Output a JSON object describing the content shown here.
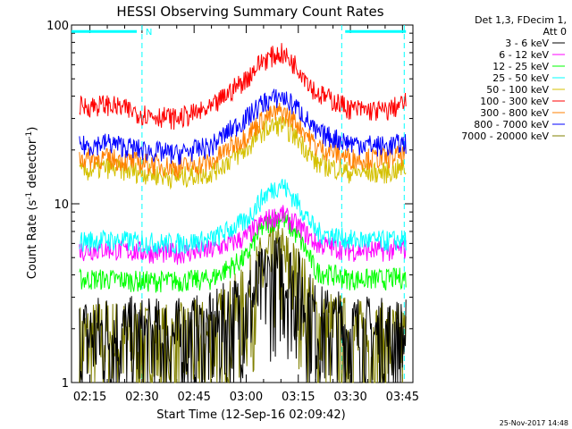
{
  "chart_data": {
    "type": "line",
    "title": "HESSI Observing Summary Count Rates",
    "xlabel": "Start Time (12-Sep-16 02:09:42)",
    "ylabel_main": "Count Rate (s",
    "ylabel_sup": "-1",
    "ylabel_rest": " detector",
    "ylabel_sup2": "-1",
    "ylabel_end": ")",
    "yscale": "log",
    "ylim": [
      1,
      100
    ],
    "xlim": [
      "02:09:42",
      "03:48:00"
    ],
    "x_ticks": [
      "02:15",
      "02:30",
      "02:45",
      "03:00",
      "03:15",
      "03:30",
      "03:45"
    ],
    "y_ticks": [
      "1",
      "10",
      "100"
    ],
    "legend_title_1": "Det 1,3, FDecim 1,",
    "legend_title_2": "Att 0",
    "legend_placement": "right",
    "flags": {
      "label": "N",
      "segments": [
        [
          "02:09:42",
          "02:28:30"
        ],
        [
          "03:28:30",
          "03:46:00"
        ]
      ],
      "vlines": [
        "02:30:00",
        "03:27:30",
        "03:45:30"
      ],
      "level": 92,
      "color": "#00ffff"
    },
    "series": [
      {
        "name": "3 - 6 keV",
        "color": "#000000",
        "x": [
          "02:12",
          "02:20",
          "02:30",
          "02:40",
          "02:50",
          "03:00",
          "03:05",
          "03:10",
          "03:15",
          "03:20",
          "03:30",
          "03:40",
          "03:46"
        ],
        "y": [
          1.5,
          1.6,
          1.5,
          1.5,
          1.6,
          2.2,
          3.0,
          3.5,
          2.8,
          1.8,
          1.6,
          1.5,
          1.5
        ]
      },
      {
        "name": "6 - 12 keV",
        "color": "#ff00ff",
        "x": [
          "02:12",
          "02:20",
          "02:30",
          "02:40",
          "02:50",
          "03:00",
          "03:05",
          "03:10",
          "03:15",
          "03:20",
          "03:30",
          "03:40",
          "03:46"
        ],
        "y": [
          5.5,
          5.6,
          5.4,
          5.3,
          5.5,
          6.5,
          8.0,
          8.8,
          7.5,
          6.0,
          5.5,
          5.5,
          5.6
        ]
      },
      {
        "name": "12 - 25 keV",
        "color": "#00ff00",
        "x": [
          "02:12",
          "02:20",
          "02:30",
          "02:40",
          "02:50",
          "03:00",
          "03:05",
          "03:10",
          "03:15",
          "03:20",
          "03:30",
          "03:40",
          "03:46"
        ],
        "y": [
          3.8,
          3.8,
          3.7,
          3.7,
          3.8,
          5.0,
          7.5,
          8.5,
          6.5,
          4.2,
          3.8,
          3.8,
          3.9
        ]
      },
      {
        "name": "25 - 50 keV",
        "color": "#00ffff",
        "x": [
          "02:12",
          "02:20",
          "02:30",
          "02:40",
          "02:50",
          "03:00",
          "03:05",
          "03:10",
          "03:15",
          "03:20",
          "03:30",
          "03:40",
          "03:46"
        ],
        "y": [
          6.2,
          6.3,
          6.1,
          6.0,
          6.3,
          8.0,
          11.0,
          13.0,
          10.0,
          7.0,
          6.3,
          6.2,
          6.3
        ]
      },
      {
        "name": "50 - 100 keV",
        "color": "#d4c000",
        "x": [
          "02:12",
          "02:20",
          "02:30",
          "02:40",
          "02:50",
          "03:00",
          "03:05",
          "03:10",
          "03:15",
          "03:20",
          "03:30",
          "03:40",
          "03:46"
        ],
        "y": [
          15,
          16,
          15,
          14,
          15,
          20,
          26,
          28,
          23,
          17,
          15,
          15,
          16
        ]
      },
      {
        "name": "100 - 300 keV",
        "color": "#ff0000",
        "x": [
          "02:12",
          "02:20",
          "02:30",
          "02:40",
          "02:50",
          "03:00",
          "03:05",
          "03:10",
          "03:15",
          "03:20",
          "03:30",
          "03:40",
          "03:46"
        ],
        "y": [
          35,
          36,
          32,
          30,
          34,
          50,
          64,
          70,
          58,
          42,
          34,
          33,
          37
        ]
      },
      {
        "name": "300 - 800 keV",
        "color": "#ff8000",
        "x": [
          "02:12",
          "02:20",
          "02:30",
          "02:40",
          "02:50",
          "03:00",
          "03:05",
          "03:10",
          "03:15",
          "03:20",
          "03:30",
          "03:40",
          "03:46"
        ],
        "y": [
          18,
          18,
          17,
          16,
          17,
          24,
          30,
          33,
          28,
          21,
          18,
          18,
          19
        ]
      },
      {
        "name": "800 - 7000 keV",
        "color": "#0000ff",
        "x": [
          "02:12",
          "02:20",
          "02:30",
          "02:40",
          "02:50",
          "03:00",
          "03:05",
          "03:10",
          "03:15",
          "03:20",
          "03:30",
          "03:40",
          "03:46"
        ],
        "y": [
          21,
          22,
          20,
          19,
          21,
          30,
          37,
          40,
          34,
          25,
          22,
          21,
          22
        ]
      },
      {
        "name": "7000 - 20000 keV",
        "color": "#808000",
        "x": [
          "02:12",
          "02:20",
          "02:30",
          "02:40",
          "02:50",
          "03:00",
          "03:05",
          "03:10",
          "03:15",
          "03:20",
          "03:30",
          "03:40",
          "03:46"
        ],
        "y": [
          1.4,
          1.5,
          1.4,
          1.4,
          1.5,
          2.3,
          3.6,
          4.0,
          3.0,
          1.8,
          1.5,
          1.4,
          1.4
        ]
      }
    ]
  },
  "footer": {
    "timestamp": "25-Nov-2017 14:48"
  }
}
